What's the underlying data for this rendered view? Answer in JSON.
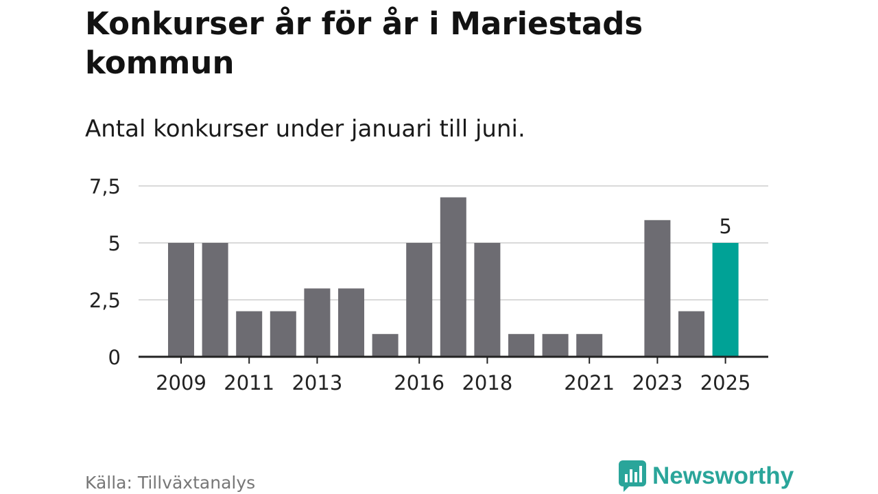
{
  "title": "Konkurser år för år i Mariestads kommun",
  "subtitle": "Antal konkurser under januari till juni.",
  "source": "Källa: Tillväxtanalys",
  "brand": "Newsworthy",
  "colors": {
    "bar": "#6d6c72",
    "highlight": "#00a296",
    "grid": "#d9d9d9",
    "axis": "#222222",
    "brand": "#2aa59a"
  },
  "chart_data": {
    "type": "bar",
    "title": "Konkurser år för år i Mariestads kommun",
    "subtitle": "Antal konkurser under januari till juni.",
    "categories": [
      "2009",
      "2010",
      "2011",
      "2012",
      "2013",
      "2014",
      "2015",
      "2016",
      "2017",
      "2018",
      "2019",
      "2020",
      "2021",
      "2022",
      "2023",
      "2024",
      "2025"
    ],
    "values": [
      5,
      5,
      2,
      2,
      3,
      3,
      1,
      5,
      7,
      5,
      1,
      1,
      1,
      0,
      6,
      2,
      5
    ],
    "highlight_index": 16,
    "highlight_label": "5",
    "xlabel": "",
    "ylabel": "",
    "ylim": [
      0,
      7.5
    ],
    "yticks": [
      0,
      2.5,
      5,
      7.5
    ],
    "ytick_labels": [
      "0",
      "2,5",
      "5",
      "7,5"
    ],
    "xtick_labels": [
      "2009",
      "2011",
      "2013",
      "2016",
      "2018",
      "2021",
      "2023",
      "2025"
    ],
    "grid": true,
    "legend": "none"
  }
}
